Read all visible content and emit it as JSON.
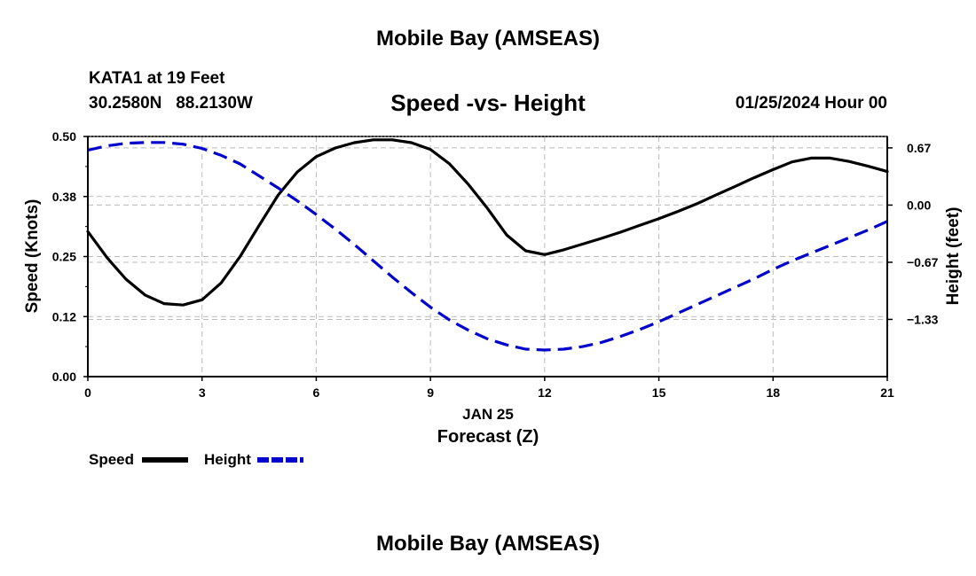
{
  "page": {
    "header_title": "Mobile Bay (AMSEAS)",
    "footer_title": "Mobile Bay (AMSEAS)"
  },
  "chart_data": {
    "type": "line",
    "station_line1": "KATA1 at 19 Feet",
    "station_line2": "30.2580N   88.2130W",
    "title": "Speed -vs- Height",
    "date_label": "01/25/2024 Hour 00",
    "xlabel_date": "JAN 25",
    "xlabel": "Forecast (Z)",
    "ylabel": "Speed (Knots)",
    "y2label": "Height (feet)",
    "xlim": [
      0,
      21
    ],
    "ylim": [
      0,
      0.5
    ],
    "y2lim": [
      -2.0,
      0.8
    ],
    "x_ticks": [
      "0",
      "3",
      "6",
      "9",
      "12",
      "15",
      "18",
      "21"
    ],
    "x_tick_values": [
      0,
      3,
      6,
      9,
      12,
      15,
      18,
      21
    ],
    "y_ticks": [
      "0.00",
      "0.12",
      "0.25",
      "0.38",
      "0.50"
    ],
    "y_tick_values": [
      0,
      0.125,
      0.25,
      0.375,
      0.5
    ],
    "y2_ticks": [
      "0.67",
      "0.00",
      "−0.67",
      "−1.33"
    ],
    "y2_tick_values": [
      0.667,
      0,
      -0.667,
      -1.333
    ],
    "grid": true,
    "series": [
      {
        "name": "Speed",
        "axis": "left",
        "color": "#000000",
        "style": "solid",
        "x": [
          0,
          0.5,
          1,
          1.5,
          2,
          2.5,
          3,
          3.5,
          4,
          4.5,
          5,
          5.5,
          6,
          6.5,
          7,
          7.5,
          8,
          8.5,
          9,
          9.5,
          10,
          10.5,
          11,
          11.5,
          12,
          12.5,
          13,
          13.5,
          14,
          14.5,
          15,
          15.5,
          16,
          16.5,
          17,
          17.5,
          18,
          18.5,
          19,
          19.5,
          20,
          20.5,
          21
        ],
        "values": [
          0.302,
          0.248,
          0.203,
          0.17,
          0.152,
          0.149,
          0.16,
          0.195,
          0.25,
          0.315,
          0.378,
          0.426,
          0.458,
          0.476,
          0.487,
          0.493,
          0.493,
          0.487,
          0.473,
          0.443,
          0.4,
          0.35,
          0.295,
          0.262,
          0.254,
          0.264,
          0.276,
          0.288,
          0.301,
          0.315,
          0.329,
          0.344,
          0.36,
          0.378,
          0.396,
          0.414,
          0.431,
          0.447,
          0.455,
          0.455,
          0.448,
          0.438,
          0.427
        ]
      },
      {
        "name": "Height",
        "axis": "right",
        "color": "#0000cc",
        "style": "dashed",
        "x": [
          0,
          0.5,
          1,
          1.5,
          2,
          2.5,
          3,
          3.5,
          4,
          4.5,
          5,
          5.5,
          6,
          6.5,
          7,
          7.5,
          8,
          8.5,
          9,
          9.5,
          10,
          10.5,
          11,
          11.5,
          12,
          12.5,
          13,
          13.5,
          14,
          14.5,
          15,
          15.5,
          16,
          16.5,
          17,
          17.5,
          18,
          18.5,
          19,
          19.5,
          20,
          20.5,
          21
        ],
        "values": [
          0.64,
          0.69,
          0.72,
          0.73,
          0.73,
          0.71,
          0.66,
          0.58,
          0.48,
          0.34,
          0.2,
          0.05,
          -0.11,
          -0.28,
          -0.46,
          -0.65,
          -0.84,
          -1.02,
          -1.19,
          -1.34,
          -1.46,
          -1.56,
          -1.63,
          -1.68,
          -1.69,
          -1.68,
          -1.65,
          -1.6,
          -1.53,
          -1.45,
          -1.36,
          -1.26,
          -1.16,
          -1.06,
          -0.96,
          -0.86,
          -0.75,
          -0.65,
          -0.56,
          -0.47,
          -0.38,
          -0.29,
          -0.19
        ]
      }
    ],
    "legend": [
      {
        "label": "Speed",
        "color": "#000000",
        "style": "solid"
      },
      {
        "label": "Height",
        "color": "#0000cc",
        "style": "dashed"
      }
    ],
    "legend_placement": "bottom-left"
  }
}
